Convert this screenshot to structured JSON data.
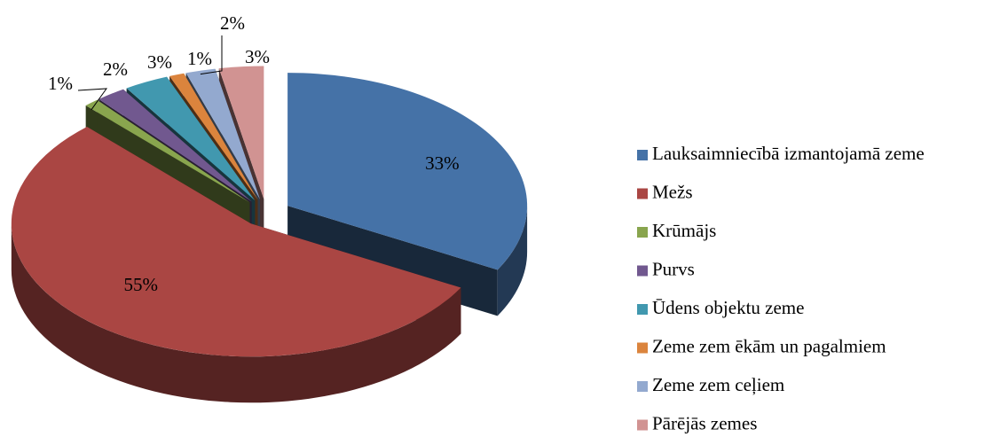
{
  "chart_data": {
    "type": "pie",
    "categories": [
      "Lauksaimniecībā izmantojamā zeme",
      "Mežs",
      "Krūmājs",
      "Purvs",
      "Ūdens objektu zeme",
      "Zeme zem ēkām un pagalmiem",
      "Zeme zem ceļiem",
      "Pārējās zemes"
    ],
    "values": [
      33,
      55,
      1,
      2,
      3,
      1,
      2,
      3
    ],
    "value_labels": [
      "33%",
      "55%",
      "1%",
      "2%",
      "3%",
      "1%",
      "2%",
      "3%"
    ],
    "colors": [
      "#4572a7",
      "#aa4643",
      "#89a54e",
      "#71588f",
      "#4198af",
      "#db843d",
      "#93a9cf",
      "#d19392"
    ]
  }
}
